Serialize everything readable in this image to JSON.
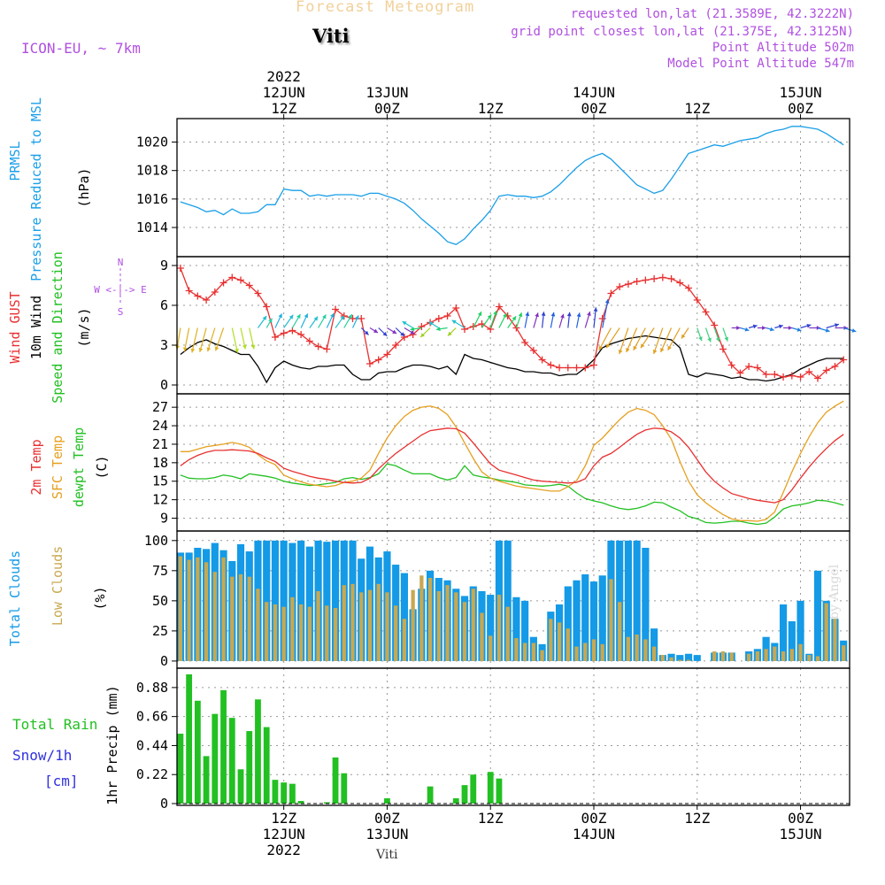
{
  "header": {
    "title": "Forecast Meteogram",
    "station": "Viti",
    "model": "ICON-EU, ~ 7km",
    "requested": "requested lon,lat (21.3589E, 42.3222N)",
    "gridpoint": "grid point closest lon,lat (21.375E, 42.3125N)",
    "point_alt": "Point Altitude 502m",
    "model_alt": "Model Point Altitude 547m",
    "footer": "Viti",
    "credit": "by Angel"
  },
  "time_axis": {
    "top_labels": [
      {
        "h": 12,
        "l1": "2022",
        "l2": "12JUN",
        "l3": "12Z"
      },
      {
        "h": 24,
        "l2": "13JUN",
        "l3": "00Z"
      },
      {
        "h": 36,
        "l3": "12Z"
      },
      {
        "h": 48,
        "l2": "14JUN",
        "l3": "00Z"
      },
      {
        "h": 60,
        "l3": "12Z"
      },
      {
        "h": 72,
        "l2": "15JUN",
        "l3": "00Z"
      }
    ],
    "bottom_labels": [
      {
        "h": 12,
        "l1": "12Z",
        "l2": "12JUN",
        "l3": "2022"
      },
      {
        "h": 24,
        "l1": "00Z",
        "l2": "13JUN"
      },
      {
        "h": 36,
        "l1": "12Z"
      },
      {
        "h": 48,
        "l1": "00Z",
        "l2": "14JUN"
      },
      {
        "h": 60,
        "l1": "12Z"
      },
      {
        "h": 72,
        "l1": "00Z",
        "l2": "15JUN"
      }
    ]
  },
  "colors": {
    "pressure": "#1a9fe8",
    "gust": "#e83030",
    "wind": "#000000",
    "temp": "#e83030",
    "sfc": "#e6a020",
    "dew": "#22c022",
    "cloud_total": "#149ae6",
    "cloud_low": "#c8a850",
    "precip": "#22c022",
    "snow": "#3030e0",
    "label_purple": "#b050e0"
  },
  "chart_data": [
    {
      "type": "line",
      "name": "pressure",
      "labels": [
        "PRMSL",
        "Pressure Reduced to MSL",
        "(hPa)"
      ],
      "ylim": [
        1012.2,
        1021.4
      ],
      "yticks": [
        1014,
        1016,
        1018,
        1020
      ],
      "x": [
        0,
        1,
        2,
        3,
        4,
        5,
        6,
        7,
        8,
        9,
        10,
        11,
        12,
        13,
        14,
        15,
        16,
        17,
        18,
        19,
        20,
        21,
        22,
        23,
        24,
        25,
        26,
        27,
        28,
        29,
        30,
        31,
        32,
        33,
        34,
        35,
        36,
        37,
        38,
        39,
        40,
        41,
        42,
        43,
        44,
        45,
        46,
        47,
        48,
        49,
        50,
        51,
        52,
        53,
        54,
        55,
        56,
        57,
        58,
        59,
        60,
        61,
        62,
        63,
        64,
        65,
        66,
        67,
        68,
        69,
        70,
        71,
        72,
        73,
        74,
        75,
        76,
        77
      ],
      "y": [
        1015.8,
        1015.6,
        1015.4,
        1015.1,
        1015.2,
        1014.9,
        1015.3,
        1015.0,
        1015.0,
        1015.1,
        1015.6,
        1015.6,
        1016.7,
        1016.6,
        1016.6,
        1016.2,
        1016.3,
        1016.2,
        1016.3,
        1016.3,
        1016.3,
        1016.2,
        1016.4,
        1016.4,
        1016.2,
        1016.0,
        1015.7,
        1015.2,
        1014.6,
        1014.1,
        1013.6,
        1013.0,
        1012.8,
        1013.2,
        1013.9,
        1014.5,
        1015.2,
        1016.2,
        1016.3,
        1016.2,
        1016.2,
        1016.1,
        1016.2,
        1016.5,
        1017.0,
        1017.6,
        1018.2,
        1018.7,
        1019.0,
        1019.2,
        1018.8,
        1018.2,
        1017.6,
        1017.0,
        1016.7,
        1016.4,
        1016.6,
        1017.4,
        1018.3,
        1019.2,
        1019.4,
        1019.6,
        1019.8,
        1019.7,
        1019.9,
        1020.1,
        1020.2,
        1020.3,
        1020.6,
        1020.8,
        1020.9,
        1021.1,
        1021.1,
        1021.0,
        1020.9,
        1020.6,
        1020.2,
        1019.8
      ]
    },
    {
      "type": "line",
      "name": "wind",
      "labels": [
        "Wind GUST",
        "10m Wind",
        "Speed and Direction",
        "(m/s)"
      ],
      "compass": [
        "N",
        "S",
        "W <-|-> E"
      ],
      "ylim": [
        -0.4,
        9.4
      ],
      "yticks": [
        0,
        3,
        6,
        9
      ],
      "x": [
        0,
        1,
        2,
        3,
        4,
        5,
        6,
        7,
        8,
        9,
        10,
        11,
        12,
        13,
        14,
        15,
        16,
        17,
        18,
        19,
        20,
        21,
        22,
        23,
        24,
        25,
        26,
        27,
        28,
        29,
        30,
        31,
        32,
        33,
        34,
        35,
        36,
        37,
        38,
        39,
        40,
        41,
        42,
        43,
        44,
        45,
        46,
        47,
        48,
        49,
        50,
        51,
        52,
        53,
        54,
        55,
        56,
        57,
        58,
        59,
        60,
        61,
        62,
        63,
        64,
        65,
        66,
        67,
        68,
        69,
        70,
        71,
        72,
        73,
        74,
        75,
        76,
        77
      ],
      "gust": [
        8.8,
        7.1,
        6.7,
        6.4,
        7.0,
        7.7,
        8.1,
        7.9,
        7.5,
        6.9,
        5.9,
        3.6,
        3.9,
        4.1,
        3.8,
        3.3,
        2.9,
        2.7,
        5.7,
        5.2,
        5.0,
        5.0,
        1.6,
        1.9,
        2.3,
        3.0,
        3.6,
        3.8,
        4.4,
        4.7,
        5.0,
        5.2,
        5.8,
        4.2,
        4.4,
        4.6,
        4.2,
        5.9,
        5.2,
        4.3,
        3.2,
        2.6,
        1.9,
        1.5,
        1.3,
        1.3,
        1.3,
        1.3,
        1.5,
        5.0,
        6.9,
        7.4,
        7.6,
        7.8,
        7.9,
        8.0,
        8.1,
        8.0,
        7.7,
        7.3,
        6.4,
        5.5,
        4.5,
        2.7,
        1.5,
        0.9,
        1.4,
        1.3,
        0.8,
        0.8,
        0.6,
        0.7,
        0.6,
        1.0,
        0.5,
        1.1,
        1.4,
        1.9
      ],
      "speed": [
        2.3,
        2.8,
        3.2,
        3.4,
        3.1,
        2.9,
        2.6,
        2.3,
        2.3,
        1.4,
        0.2,
        1.3,
        1.8,
        1.5,
        1.3,
        1.2,
        1.4,
        1.4,
        1.5,
        1.5,
        0.8,
        0.4,
        0.4,
        0.9,
        1.0,
        1.0,
        1.3,
        1.5,
        1.5,
        1.4,
        1.2,
        1.4,
        0.8,
        2.3,
        2.0,
        1.9,
        1.7,
        1.5,
        1.3,
        1.2,
        1.0,
        1.0,
        0.9,
        0.9,
        0.7,
        0.8,
        0.8,
        1.3,
        1.9,
        2.8,
        3.1,
        3.3,
        3.5,
        3.6,
        3.7,
        3.6,
        3.5,
        3.4,
        2.8,
        0.8,
        0.6,
        0.9,
        0.8,
        0.7,
        0.5,
        0.6,
        0.4,
        0.4,
        0.3,
        0.4,
        0.6,
        0.8,
        1.2,
        1.5,
        1.8,
        2.0,
        2.0,
        2.0
      ],
      "arrow_level": 4.3
    },
    {
      "type": "line",
      "name": "temperature",
      "labels": [
        "2m Temp",
        "SFC Temp",
        "dewpt Temp",
        "(C)"
      ],
      "ylim": [
        7.5,
        28.6
      ],
      "yticks": [
        9,
        12,
        15,
        18,
        21,
        24,
        27
      ],
      "x": [
        0,
        1,
        2,
        3,
        4,
        5,
        6,
        7,
        8,
        9,
        10,
        11,
        12,
        13,
        14,
        15,
        16,
        17,
        18,
        19,
        20,
        21,
        22,
        23,
        24,
        25,
        26,
        27,
        28,
        29,
        30,
        31,
        32,
        33,
        34,
        35,
        36,
        37,
        38,
        39,
        40,
        41,
        42,
        43,
        44,
        45,
        46,
        47,
        48,
        49,
        50,
        51,
        52,
        53,
        54,
        55,
        56,
        57,
        58,
        59,
        60,
        61,
        62,
        63,
        64,
        65,
        66,
        67,
        68,
        69,
        70,
        71,
        72,
        73,
        74,
        75,
        76,
        77
      ],
      "t2m": [
        17.5,
        18.5,
        19.2,
        19.7,
        20.0,
        20.0,
        20.1,
        20.0,
        19.9,
        19.5,
        18.8,
        18.2,
        17.1,
        16.6,
        16.2,
        15.8,
        15.5,
        15.3,
        15.0,
        14.8,
        14.7,
        14.8,
        15.5,
        17.0,
        18.3,
        19.5,
        20.5,
        21.5,
        22.5,
        23.2,
        23.4,
        23.6,
        23.5,
        22.8,
        21.2,
        19.5,
        17.8,
        16.8,
        16.4,
        16.0,
        15.6,
        15.2,
        15.0,
        14.9,
        14.8,
        14.7,
        14.8,
        15.4,
        17.5,
        18.9,
        19.5,
        20.5,
        21.6,
        22.6,
        23.3,
        23.6,
        23.5,
        23.0,
        22.0,
        20.5,
        18.5,
        16.5,
        15.0,
        13.9,
        13.0,
        12.6,
        12.2,
        11.9,
        11.7,
        11.5,
        12.0,
        13.6,
        15.5,
        17.3,
        18.9,
        20.3,
        21.6,
        22.6
      ],
      "sfc": [
        19.8,
        19.8,
        20.2,
        20.6,
        20.8,
        21.0,
        21.3,
        21.0,
        20.5,
        19.3,
        18.3,
        17.7,
        16.0,
        15.4,
        14.9,
        14.5,
        14.3,
        14.1,
        14.3,
        14.8,
        15.0,
        15.5,
        16.8,
        19.5,
        22.0,
        24.0,
        25.5,
        26.5,
        27.0,
        27.2,
        26.8,
        25.8,
        23.8,
        21.2,
        18.7,
        16.5,
        15.5,
        15.0,
        14.6,
        14.2,
        14.0,
        13.8,
        13.6,
        13.4,
        13.4,
        14.1,
        15.1,
        17.5,
        20.8,
        22.0,
        23.5,
        25.0,
        26.2,
        26.8,
        26.5,
        25.8,
        24.0,
        21.8,
        18.2,
        15.0,
        12.8,
        11.5,
        10.5,
        9.6,
        8.9,
        8.6,
        8.6,
        8.5,
        8.8,
        10.0,
        13.2,
        16.5,
        19.5,
        22.2,
        24.5,
        26.2,
        27.2,
        28.0
      ],
      "dew": [
        16.0,
        15.5,
        15.4,
        15.4,
        15.6,
        16.0,
        15.8,
        15.4,
        16.2,
        16.0,
        15.8,
        15.5,
        15.0,
        14.7,
        14.5,
        14.3,
        14.4,
        14.6,
        14.8,
        15.4,
        15.6,
        15.3,
        15.6,
        16.2,
        17.8,
        17.5,
        16.8,
        16.2,
        16.2,
        16.2,
        15.6,
        15.2,
        15.6,
        17.5,
        16.0,
        15.7,
        15.5,
        15.2,
        15.0,
        14.8,
        14.4,
        14.3,
        14.2,
        14.3,
        14.5,
        14.2,
        13.1,
        12.2,
        11.8,
        11.5,
        11.0,
        10.6,
        10.4,
        10.6,
        11.0,
        11.6,
        11.5,
        10.8,
        10.2,
        9.3,
        8.9,
        8.3,
        8.2,
        8.3,
        8.5,
        8.5,
        8.2,
        8.0,
        8.2,
        9.2,
        10.5,
        11.0,
        11.2,
        11.5,
        11.9,
        11.8,
        11.5,
        11.1
      ]
    },
    {
      "type": "bar",
      "name": "clouds",
      "labels": [
        "Total Clouds",
        "Low Clouds",
        "(%)"
      ],
      "ylim": [
        -3,
        105
      ],
      "yticks": [
        0,
        25,
        50,
        75,
        100
      ],
      "x": [
        0,
        1,
        2,
        3,
        4,
        5,
        6,
        7,
        8,
        9,
        10,
        11,
        12,
        13,
        14,
        15,
        16,
        17,
        18,
        19,
        20,
        21,
        22,
        23,
        24,
        25,
        26,
        27,
        28,
        29,
        30,
        31,
        32,
        33,
        34,
        35,
        36,
        37,
        38,
        39,
        40,
        41,
        42,
        43,
        44,
        45,
        46,
        47,
        48,
        49,
        50,
        51,
        52,
        53,
        54,
        55,
        56,
        57,
        58,
        59,
        60,
        61,
        62,
        63,
        64,
        65,
        66,
        67,
        68,
        69,
        70,
        71,
        72,
        73,
        74,
        75,
        76,
        77
      ],
      "total": [
        90,
        90,
        94,
        93,
        98,
        92,
        83,
        97,
        91,
        100,
        100,
        100,
        100,
        98,
        100,
        95,
        100,
        99,
        100,
        100,
        100,
        85,
        95,
        86,
        91,
        80,
        73,
        43,
        60,
        75,
        69,
        67,
        60,
        54,
        62,
        58,
        55,
        100,
        100,
        53,
        50,
        20,
        14,
        41,
        47,
        62,
        67,
        72,
        66,
        71,
        100,
        100,
        100,
        100,
        94,
        27,
        5,
        6,
        5,
        6,
        5,
        0,
        7,
        7,
        7,
        0,
        8,
        10,
        20,
        15,
        47,
        33,
        50,
        6,
        75,
        50,
        35,
        17
      ],
      "low": [
        87,
        84,
        86,
        82,
        74,
        86,
        70,
        72,
        70,
        60,
        49,
        47,
        45,
        53,
        47,
        45,
        58,
        46,
        44,
        63,
        64,
        57,
        59,
        64,
        57,
        46,
        35,
        59,
        71,
        69,
        58,
        63,
        57,
        49,
        60,
        40,
        21,
        55,
        45,
        19,
        15,
        15,
        9,
        35,
        32,
        27,
        12,
        15,
        18,
        14,
        68,
        49,
        20,
        22,
        18,
        12,
        5,
        3,
        1,
        1,
        0,
        0,
        8,
        8,
        7,
        0,
        6,
        8,
        10,
        12,
        8,
        10,
        14,
        5,
        4,
        48,
        35,
        13
      ]
    },
    {
      "type": "bar",
      "name": "precipitation",
      "labels": [
        "Total  Rain",
        "Snow/1h",
        "[cm]",
        "1hr Precip (mm)"
      ],
      "ylim": [
        0,
        1.0
      ],
      "yticks": [
        0,
        0.22,
        0.44,
        0.66,
        0.88
      ],
      "ytick_labels": [
        "0",
        "0.22",
        "0.44",
        "0.66",
        "0.88"
      ],
      "x": [
        0,
        1,
        2,
        3,
        4,
        5,
        6,
        7,
        8,
        9,
        10,
        11,
        12,
        13,
        14,
        15,
        16,
        17,
        18,
        19,
        20,
        21,
        22,
        23,
        24,
        25,
        26,
        27,
        28,
        29,
        30,
        31,
        32,
        33,
        34,
        35,
        36,
        37,
        38,
        39,
        40,
        41,
        42,
        43,
        44,
        45,
        46,
        47,
        48,
        49,
        50,
        51,
        52,
        53,
        54,
        55,
        56,
        57,
        58,
        59,
        60,
        61,
        62,
        63,
        64,
        65,
        66,
        67,
        68,
        69,
        70,
        71,
        72,
        73,
        74,
        75,
        76,
        77
      ],
      "rain": [
        0.53,
        0.98,
        0.78,
        0.36,
        0.68,
        0.86,
        0.65,
        0.26,
        0.55,
        0.79,
        0.58,
        0.18,
        0.16,
        0.15,
        0.02,
        0,
        0,
        0.01,
        0.35,
        0.23,
        0,
        0,
        0,
        0,
        0.04,
        0,
        0,
        0,
        0,
        0.13,
        0,
        0,
        0.04,
        0.14,
        0.22,
        0,
        0.24,
        0.19,
        0,
        0,
        0,
        0,
        0,
        0,
        0,
        0,
        0,
        0,
        0,
        0,
        0,
        0,
        0,
        0,
        0,
        0,
        0,
        0,
        0,
        0,
        0,
        0,
        0,
        0,
        0,
        0,
        0,
        0,
        0,
        0,
        0,
        0,
        0,
        0,
        0,
        0,
        0,
        0
      ]
    }
  ]
}
